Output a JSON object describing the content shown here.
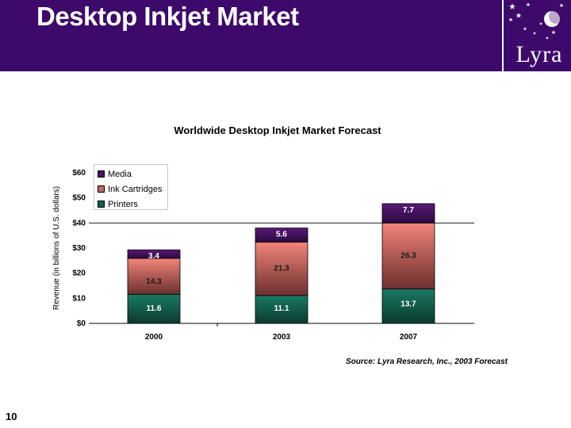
{
  "header": {
    "title": "Desktop Inkjet Market",
    "logo_text": "Lyra",
    "bg_color": "#3d0a6b"
  },
  "chart_data": {
    "type": "bar",
    "stacked": true,
    "title": "Worldwide Desktop Inkjet Market Forecast",
    "xlabel": "",
    "ylabel": "Revenue (in billions of U.S. dollars)",
    "ylim": [
      0,
      60
    ],
    "yticks": [
      "$0",
      "$10",
      "$20",
      "$30",
      "$40",
      "$50",
      "$60"
    ],
    "ytick_values": [
      0,
      10,
      20,
      30,
      40,
      50,
      60
    ],
    "categories": [
      "2000",
      "2003",
      "2007"
    ],
    "series": [
      {
        "name": "Printers",
        "values": [
          11.6,
          11.1,
          13.7
        ],
        "labels": [
          "11.6",
          "11.1",
          "13.7"
        ],
        "color_top": "#1a7a64",
        "color_bottom": "#0b3a30"
      },
      {
        "name": "Ink Cartridges",
        "values": [
          14.3,
          21.3,
          26.3
        ],
        "labels": [
          "14.3",
          "21.3",
          "26.3"
        ],
        "color_top": "#f2847a",
        "color_bottom": "#6b2f2e"
      },
      {
        "name": "Media",
        "values": [
          3.4,
          5.6,
          7.7
        ],
        "labels": [
          "3.4",
          "5.6",
          "7.7"
        ],
        "color_top": "#5a1a78",
        "color_bottom": "#2a0940"
      }
    ],
    "legend": [
      "Media",
      "Ink Cartridges",
      "Printers"
    ],
    "legend_colors": [
      "#4a1266",
      "#c06a66",
      "#15614f"
    ],
    "legend_position": "top-left",
    "grid": false
  },
  "footer": {
    "source": "Source: Lyra Research, Inc., 2003 Forecast",
    "page_number": "10"
  }
}
